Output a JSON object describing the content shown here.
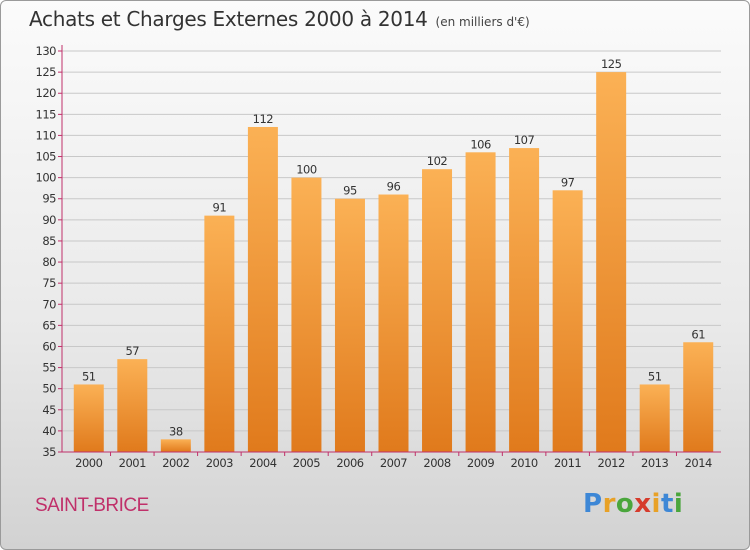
{
  "header": {
    "title": "Achats et Charges Externes 2000 à 2014",
    "unit": "(en milliers d'€)"
  },
  "footer": {
    "place": "SAINT-BRICE",
    "logo_text": "Proxiti",
    "logo_letters": [
      "P",
      "r",
      "o",
      "x",
      "i",
      "t",
      "i"
    ],
    "logo_colors": [
      "#3d87d6",
      "#e8a126",
      "#4aa63c",
      "#d63b2c",
      "#e8a126",
      "#3d87d6",
      "#4aa63c"
    ]
  },
  "colors": {
    "bar_light": "#fbb155",
    "bar_dark": "#e07a1c",
    "axis": "#c0306a",
    "grid": "#c8c8c8",
    "label": "#333333"
  },
  "chart_data": {
    "type": "bar",
    "title": "Achats et Charges Externes 2000 à 2014",
    "subtitle": "(en milliers d'€)",
    "xlabel": "",
    "ylabel": "",
    "categories": [
      "2000",
      "2001",
      "2002",
      "2003",
      "2004",
      "2005",
      "2006",
      "2007",
      "2008",
      "2009",
      "2010",
      "2011",
      "2012",
      "2013",
      "2014"
    ],
    "values": [
      51,
      57,
      38,
      91,
      112,
      100,
      95,
      96,
      102,
      106,
      107,
      97,
      125,
      51,
      61
    ],
    "ylim": [
      35,
      130
    ],
    "yticks": [
      35,
      40,
      45,
      50,
      55,
      60,
      65,
      70,
      75,
      80,
      85,
      90,
      95,
      100,
      105,
      110,
      115,
      120,
      125,
      130
    ],
    "grid": true,
    "legend": "none"
  }
}
